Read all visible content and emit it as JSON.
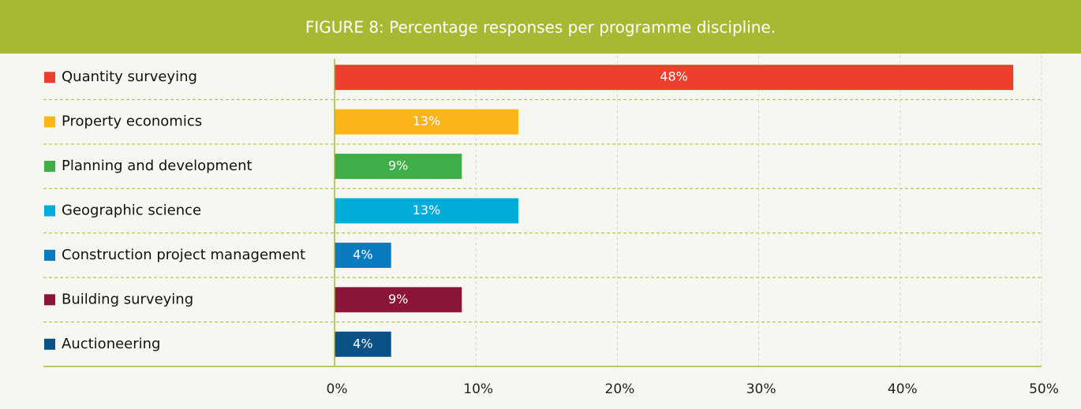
{
  "chart_data": {
    "type": "bar",
    "orientation": "horizontal",
    "title": "FIGURE 8: Percentage responses per programme discipline.",
    "categories": [
      "Quantity surveying",
      "Property economics",
      "Planning and development",
      "Geographic science",
      "Construction project management",
      "Building surveying",
      "Auctioneering"
    ],
    "values": [
      48,
      13,
      9,
      13,
      4,
      9,
      4
    ],
    "value_labels": [
      "48%",
      "13%",
      "9%",
      "13%",
      "4%",
      "9%",
      "4%"
    ],
    "colors": [
      "#ee3f2c",
      "#fbb519",
      "#3fae49",
      "#00acd9",
      "#0a7bc1",
      "#8b1537",
      "#0a5188"
    ],
    "xlim": [
      0,
      50
    ],
    "xticks": [
      {
        "value": 0,
        "label": "0%"
      },
      {
        "value": 10,
        "label": "10%"
      },
      {
        "value": 20,
        "label": "20%"
      },
      {
        "value": 30,
        "label": "30%"
      },
      {
        "value": 40,
        "label": "40%"
      },
      {
        "value": 50,
        "label": "50%"
      }
    ],
    "grid": true
  }
}
